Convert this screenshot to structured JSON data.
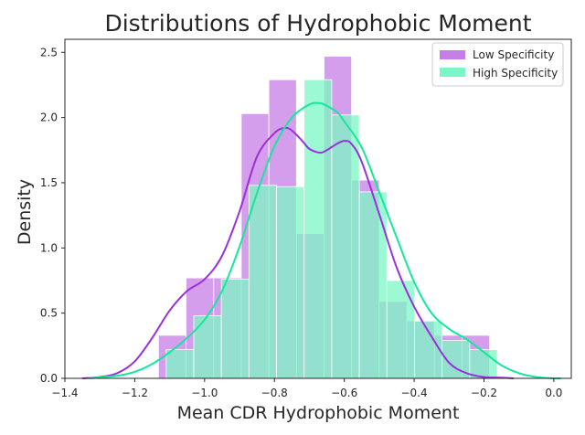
{
  "chart_data": {
    "type": "histogram+kde",
    "title": "Distributions of Hydrophobic Moment",
    "xlabel": "Mean CDR Hydrophobic Moment",
    "ylabel": "Density",
    "xlim": [
      -1.4,
      0.05
    ],
    "ylim": [
      0,
      2.6
    ],
    "x_ticks": [
      -1.4,
      -1.2,
      -1.0,
      -0.8,
      -0.6,
      -0.4,
      -0.2,
      0.0
    ],
    "x_tick_labels": [
      "−1.4",
      "−1.2",
      "−1.0",
      "−0.8",
      "−0.6",
      "−0.4",
      "−0.2",
      "0.0"
    ],
    "y_ticks": [
      0.0,
      0.5,
      1.0,
      1.5,
      2.0,
      2.5
    ],
    "y_tick_labels": [
      "0.0",
      "0.5",
      "1.0",
      "1.5",
      "2.0",
      "2.5"
    ],
    "grid": false,
    "legend_position": "top-right",
    "series": [
      {
        "name": "Low Specificity",
        "color": "#9b30d9",
        "hist_color": "#c77de6",
        "bins": [
          {
            "x0": -1.132,
            "x1": -1.053,
            "density": 0.33
          },
          {
            "x0": -1.053,
            "x1": -0.974,
            "density": 0.77
          },
          {
            "x0": -0.974,
            "x1": -0.895,
            "density": 0.77
          },
          {
            "x0": -0.895,
            "x1": -0.816,
            "density": 2.03
          },
          {
            "x0": -0.816,
            "x1": -0.737,
            "density": 2.29
          },
          {
            "x0": -0.737,
            "x1": -0.658,
            "density": 1.11
          },
          {
            "x0": -0.658,
            "x1": -0.579,
            "density": 2.47
          },
          {
            "x0": -0.579,
            "x1": -0.5,
            "density": 1.52
          },
          {
            "x0": -0.5,
            "x1": -0.421,
            "density": 0.59
          },
          {
            "x0": -0.421,
            "x1": -0.342,
            "density": 0.44
          },
          {
            "x0": -0.342,
            "x1": -0.263,
            "density": 0.33
          },
          {
            "x0": -0.263,
            "x1": -0.184,
            "density": 0.33
          }
        ],
        "kde": {
          "x": [
            -1.35,
            -1.3,
            -1.25,
            -1.2,
            -1.15,
            -1.1,
            -1.05,
            -1.0,
            -0.95,
            -0.9,
            -0.85,
            -0.8,
            -0.77,
            -0.75,
            -0.72,
            -0.7,
            -0.67,
            -0.65,
            -0.62,
            -0.6,
            -0.58,
            -0.55,
            -0.5,
            -0.45,
            -0.4,
            -0.35,
            -0.3,
            -0.25,
            -0.2,
            -0.15,
            -0.115
          ],
          "y": [
            0.0,
            0.01,
            0.04,
            0.13,
            0.31,
            0.52,
            0.67,
            0.76,
            0.94,
            1.28,
            1.7,
            1.88,
            1.92,
            1.9,
            1.82,
            1.76,
            1.73,
            1.75,
            1.8,
            1.82,
            1.8,
            1.66,
            1.26,
            0.85,
            0.55,
            0.32,
            0.12,
            0.04,
            0.01,
            0.005,
            0.0
          ]
        }
      },
      {
        "name": "High Specificity",
        "color": "#14e89a",
        "hist_color": "#7cf5c6",
        "bins": [
          {
            "x0": -1.11,
            "x1": -1.031,
            "density": 0.22
          },
          {
            "x0": -1.031,
            "x1": -0.952,
            "density": 0.48
          },
          {
            "x0": -0.952,
            "x1": -0.873,
            "density": 0.76
          },
          {
            "x0": -0.873,
            "x1": -0.794,
            "density": 1.48
          },
          {
            "x0": -0.794,
            "x1": -0.715,
            "density": 1.47
          },
          {
            "x0": -0.715,
            "x1": -0.636,
            "density": 2.29
          },
          {
            "x0": -0.636,
            "x1": -0.557,
            "density": 2.02
          },
          {
            "x0": -0.557,
            "x1": -0.478,
            "density": 1.43
          },
          {
            "x0": -0.478,
            "x1": -0.399,
            "density": 0.75
          },
          {
            "x0": -0.399,
            "x1": -0.32,
            "density": 0.44
          },
          {
            "x0": -0.32,
            "x1": -0.241,
            "density": 0.29
          },
          {
            "x0": -0.241,
            "x1": -0.162,
            "density": 0.22
          }
        ],
        "kde": {
          "x": [
            -1.33,
            -1.25,
            -1.2,
            -1.15,
            -1.1,
            -1.05,
            -1.0,
            -0.95,
            -0.9,
            -0.85,
            -0.8,
            -0.75,
            -0.7,
            -0.67,
            -0.65,
            -0.62,
            -0.6,
            -0.55,
            -0.5,
            -0.45,
            -0.4,
            -0.35,
            -0.3,
            -0.25,
            -0.2,
            -0.15,
            -0.1,
            -0.05,
            0.0,
            0.02
          ],
          "y": [
            0.0,
            0.02,
            0.05,
            0.11,
            0.2,
            0.31,
            0.45,
            0.67,
            1.01,
            1.42,
            1.78,
            2.0,
            2.1,
            2.11,
            2.09,
            2.04,
            1.97,
            1.77,
            1.43,
            1.08,
            0.74,
            0.5,
            0.38,
            0.3,
            0.2,
            0.1,
            0.04,
            0.01,
            0.0,
            0.0
          ]
        }
      }
    ]
  }
}
